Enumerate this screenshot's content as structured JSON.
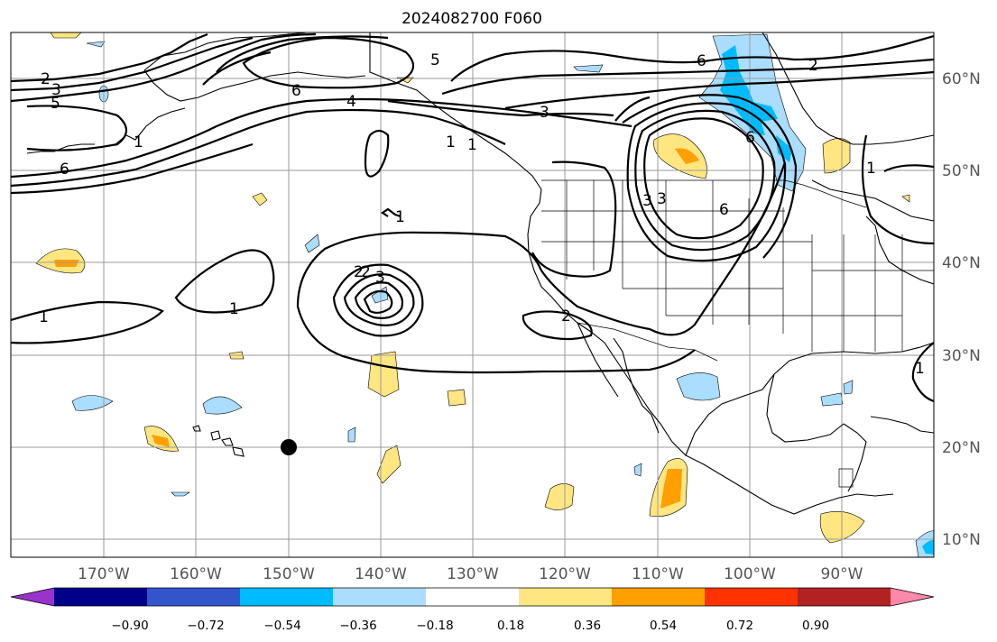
{
  "title": "2024082700 F060",
  "lon_labels": [
    "170°W",
    "160°W",
    "150°W",
    "140°W",
    "130°W",
    "120°W",
    "110°W",
    "100°W",
    "90°W"
  ],
  "lat_labels": [
    "60°N",
    "50°N",
    "40°N",
    "30°N",
    "20°N",
    "10°N"
  ],
  "colorbar": {
    "colors": [
      "#9933cc",
      "#000088",
      "#3355cc",
      "#00bbff",
      "#aaddff",
      "#ffffff",
      "#ffe680",
      "#ff9f00",
      "#ff3300",
      "#b22222",
      "#ff88aa"
    ],
    "tick_labels": [
      "−0.90",
      "−0.72",
      "−0.54",
      "−0.36",
      "−0.18",
      "0.18",
      "0.36",
      "0.54",
      "0.72",
      "0.90"
    ]
  },
  "contour_labels": [
    "2",
    "3",
    "5",
    "6",
    "1",
    "2",
    "4",
    "5",
    "6",
    "1",
    "3",
    "6",
    "2",
    "1",
    "3",
    "3",
    "6",
    "6",
    "1",
    "2",
    "3",
    "1",
    "1",
    "1",
    "2",
    "1"
  ],
  "marker": {
    "lon": "150°W",
    "lat": "20°N"
  }
}
